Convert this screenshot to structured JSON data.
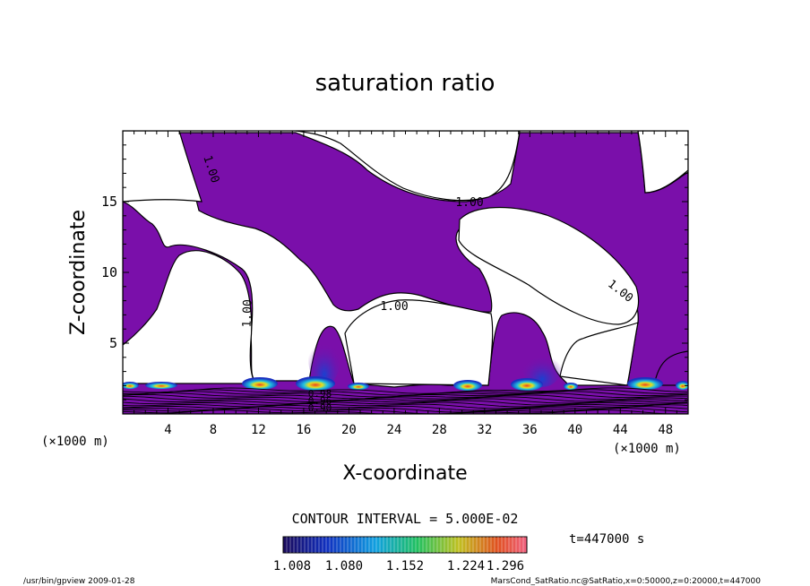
{
  "chart_data": {
    "type": "contour",
    "title": "saturation ratio",
    "xlabel": "X-coordinate",
    "ylabel": "Z-coordinate",
    "x_unit_left": "(×1000 m)",
    "x_unit_right": "(×1000 m)",
    "xlim": [
      0,
      50
    ],
    "ylim": [
      0,
      20
    ],
    "x_ticks": [
      4,
      8,
      12,
      16,
      20,
      24,
      28,
      32,
      36,
      40,
      44,
      48
    ],
    "y_ticks": [
      5,
      10,
      15
    ],
    "contour_labels": [
      "1.00",
      "1.00",
      "1.00",
      "1.00",
      "1.00",
      "0.98",
      "0.96",
      "0.90"
    ],
    "contour_interval": "CONTOUR INTERVAL = 5.000E-02",
    "time_label": "t=447000 s",
    "colorbar_ticks": [
      "1.008",
      "1.080",
      "1.152",
      "1.224",
      "1.296"
    ],
    "colorbar_range": [
      1.008,
      1.296
    ],
    "colors": {
      "supersaturated_fill": "#7a0faa",
      "colorbar_stops": [
        "#1a0a5a",
        "#1030c0",
        "#10a0e0",
        "#20c060",
        "#c0c020",
        "#e05020",
        "#f06080"
      ]
    }
  },
  "footer": {
    "left": "/usr/bin/gpview  2009-01-28",
    "right": "MarsCond_SatRatio.nc@SatRatio,x=0:50000,z=0:20000,t=447000"
  }
}
